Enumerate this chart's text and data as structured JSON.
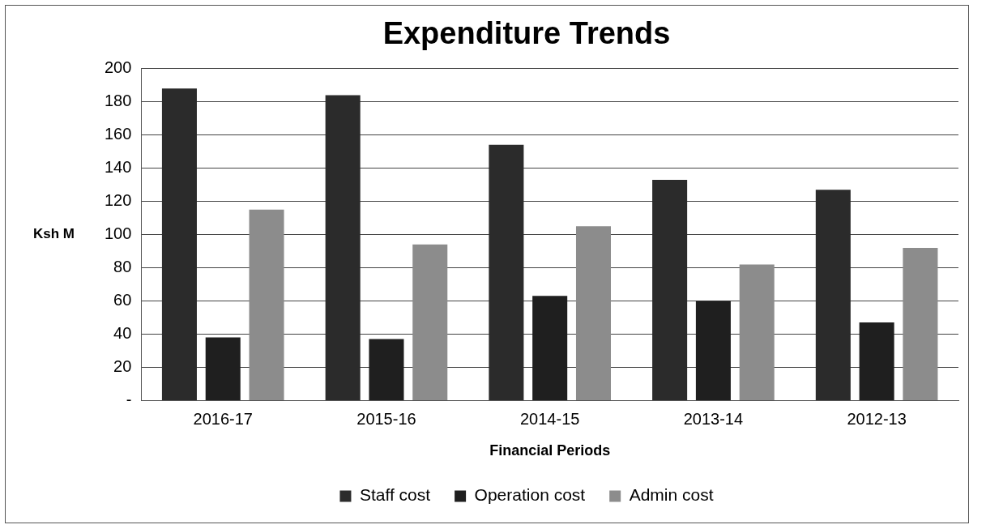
{
  "chart_data": {
    "type": "bar",
    "title": "Expenditure Trends",
    "xlabel": "Financial Periods",
    "ylabel": "Ksh M",
    "categories": [
      "2016-17",
      "2015-16",
      "2014-15",
      "2013-14",
      "2012-13"
    ],
    "series": [
      {
        "name": "Staff cost",
        "color": "#2b2b2b",
        "values": [
          188,
          184,
          154,
          133,
          127
        ]
      },
      {
        "name": "Operation cost",
        "color": "#1f1f1f",
        "values": [
          38,
          37,
          63,
          60,
          47
        ]
      },
      {
        "name": "Admin cost",
        "color": "#8c8c8c",
        "values": [
          115,
          94,
          105,
          82,
          92
        ]
      }
    ],
    "ylim": [
      0,
      200
    ],
    "yticks": [
      {
        "value": 0,
        "label": "-"
      },
      20,
      40,
      60,
      80,
      100,
      120,
      140,
      160,
      180,
      200
    ],
    "grid": "y",
    "legend": "bottom"
  }
}
